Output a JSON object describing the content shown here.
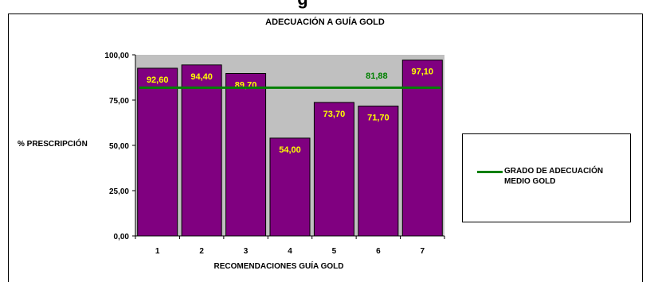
{
  "header_fragment": "g",
  "chart_data": {
    "type": "bar",
    "title": "ADECUACIÓN A GUÍA GOLD",
    "xlabel": "RECOMENDACIONES GUÍA GOLD",
    "ylabel": "% PRESCRIPCIÓN",
    "categories": [
      "1",
      "2",
      "3",
      "4",
      "5",
      "6",
      "7"
    ],
    "series": [
      {
        "values": [
          92.6,
          94.4,
          89.7,
          54.0,
          73.7,
          71.7,
          97.1
        ],
        "labels": [
          "92,60",
          "94,40",
          "89,70",
          "54,00",
          "73,70",
          "71,70",
          "97,10"
        ]
      }
    ],
    "reference_line": {
      "name": "GRADO DE ADECUACIÓN MEDIO GOLD",
      "value": 81.88,
      "label": "81,88"
    },
    "ylim": [
      0,
      100
    ],
    "yticks": [
      "0,00",
      "25,00",
      "50,00",
      "75,00",
      "100,00"
    ],
    "grid": false,
    "legend_position": "right",
    "colors": {
      "bar": "#800080",
      "plot_area": "#c0c0c0",
      "bar_label": "#ffff00",
      "line": "#008000"
    }
  }
}
